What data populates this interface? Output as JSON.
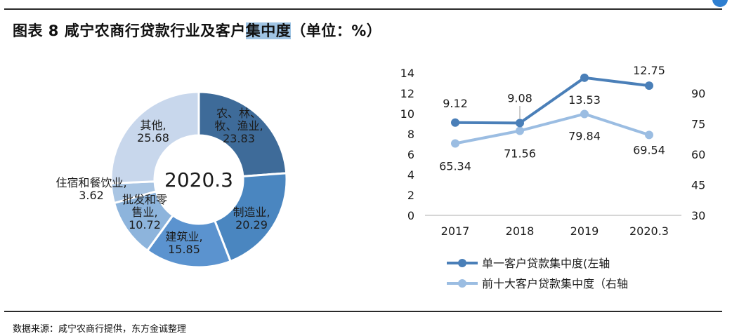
{
  "title": {
    "prefix": "图表 8  咸宁农商行贷款行业及客户",
    "highlight": "集中度",
    "suffix": "（单位：%）"
  },
  "source": "数据来源：咸宁农商行提供，东方金诚整理",
  "colors": {
    "donut": [
      "#3e6b99",
      "#4a86c0",
      "#5b93cf",
      "#8db4dc",
      "#a9c5e3",
      "#c8d7ec"
    ],
    "line_left": "#4a7fb8",
    "line_right": "#9bbde2"
  },
  "chart_data": [
    {
      "type": "pie",
      "variant": "donut",
      "center_label": "2020.3",
      "slices": [
        {
          "label_lines": [
            "农、林、",
            "牧、渔业,"
          ],
          "value": 23.83
        },
        {
          "label_lines": [
            "制造业,"
          ],
          "value": 20.29
        },
        {
          "label_lines": [
            "建筑业,"
          ],
          "value": 15.85
        },
        {
          "label_lines": [
            "批发和零",
            "售业,"
          ],
          "value": 10.72
        },
        {
          "label_lines": [
            "住宿和餐饮业,"
          ],
          "value": 3.62
        },
        {
          "label_lines": [
            "其他,"
          ],
          "value": 25.68
        }
      ]
    },
    {
      "type": "line",
      "categories": [
        "2017",
        "2018",
        "2019",
        "2020.3"
      ],
      "series": [
        {
          "name": "单一客户贷款集中度(左轴",
          "axis": "left",
          "values": [
            9.12,
            9.08,
            13.53,
            12.75
          ],
          "labels": [
            "9.12",
            "9.08",
            "13.53",
            "12.75"
          ]
        },
        {
          "name": "前十大客户贷款集中度（右轴",
          "axis": "right",
          "values": [
            65.34,
            71.56,
            79.84,
            69.54
          ],
          "labels": [
            "65.34",
            "71.56",
            "79.84",
            "69.54"
          ]
        }
      ],
      "y_left": {
        "ylim": [
          0,
          14
        ],
        "ticks": [
          0,
          2,
          4,
          6,
          8,
          10,
          12,
          14
        ]
      },
      "y_right": {
        "ylim": [
          30,
          100
        ],
        "ticks": [
          30,
          45,
          60,
          75,
          90
        ]
      },
      "grid": false,
      "legend_position": "bottom"
    }
  ]
}
